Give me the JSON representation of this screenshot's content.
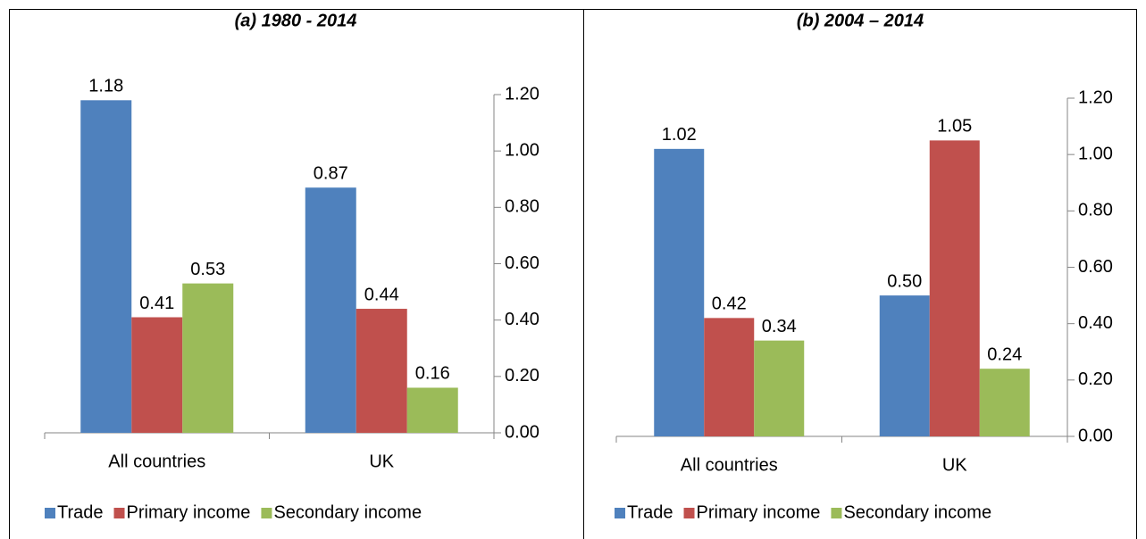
{
  "chart_data": [
    {
      "type": "bar",
      "title": "(a) 1980 - 2014",
      "categories": [
        "All countries",
        "UK"
      ],
      "series": [
        {
          "name": "Trade",
          "color": "#4f81bd",
          "values": [
            1.18,
            0.87
          ],
          "value_labels": [
            "1.18",
            "0.87"
          ]
        },
        {
          "name": "Primary income",
          "color": "#c0504d",
          "values": [
            0.41,
            0.44
          ],
          "value_labels": [
            "0.41",
            "0.44"
          ]
        },
        {
          "name": "Secondary income",
          "color": "#9bbb59",
          "values": [
            0.53,
            0.16
          ],
          "value_labels": [
            "0.53",
            "0.16"
          ]
        }
      ],
      "ylim": [
        0,
        1.2
      ],
      "yticks": [
        {
          "value": 0,
          "label": "0.00"
        },
        {
          "value": 0.2,
          "label": "0.20"
        },
        {
          "value": 0.4,
          "label": "0.40"
        },
        {
          "value": 0.6,
          "label": "0.60"
        },
        {
          "value": 0.8,
          "label": "0.80"
        },
        {
          "value": 1,
          "label": "1.00"
        },
        {
          "value": 1.2,
          "label": "1.20"
        }
      ],
      "grid": false,
      "legend": "bottom"
    },
    {
      "type": "bar",
      "title": "(b) 2004 – 2014",
      "categories": [
        "All countries",
        "UK"
      ],
      "series": [
        {
          "name": "Trade",
          "color": "#4f81bd",
          "values": [
            1.02,
            0.5
          ],
          "value_labels": [
            "1.02",
            "0.50"
          ]
        },
        {
          "name": "Primary income",
          "color": "#c0504d",
          "values": [
            0.42,
            1.05
          ],
          "value_labels": [
            "0.42",
            "1.05"
          ]
        },
        {
          "name": "Secondary income",
          "color": "#9bbb59",
          "values": [
            0.34,
            0.24
          ],
          "value_labels": [
            "0.34",
            "0.24"
          ]
        }
      ],
      "ylim": [
        0,
        1.2
      ],
      "yticks": [
        {
          "value": 0,
          "label": "0.00"
        },
        {
          "value": 0.2,
          "label": "0.20"
        },
        {
          "value": 0.4,
          "label": "0.40"
        },
        {
          "value": 0.6,
          "label": "0.60"
        },
        {
          "value": 0.8,
          "label": "0.80"
        },
        {
          "value": 1,
          "label": "1.00"
        },
        {
          "value": 1.2,
          "label": "1.20"
        }
      ],
      "grid": false,
      "legend": "bottom"
    }
  ]
}
